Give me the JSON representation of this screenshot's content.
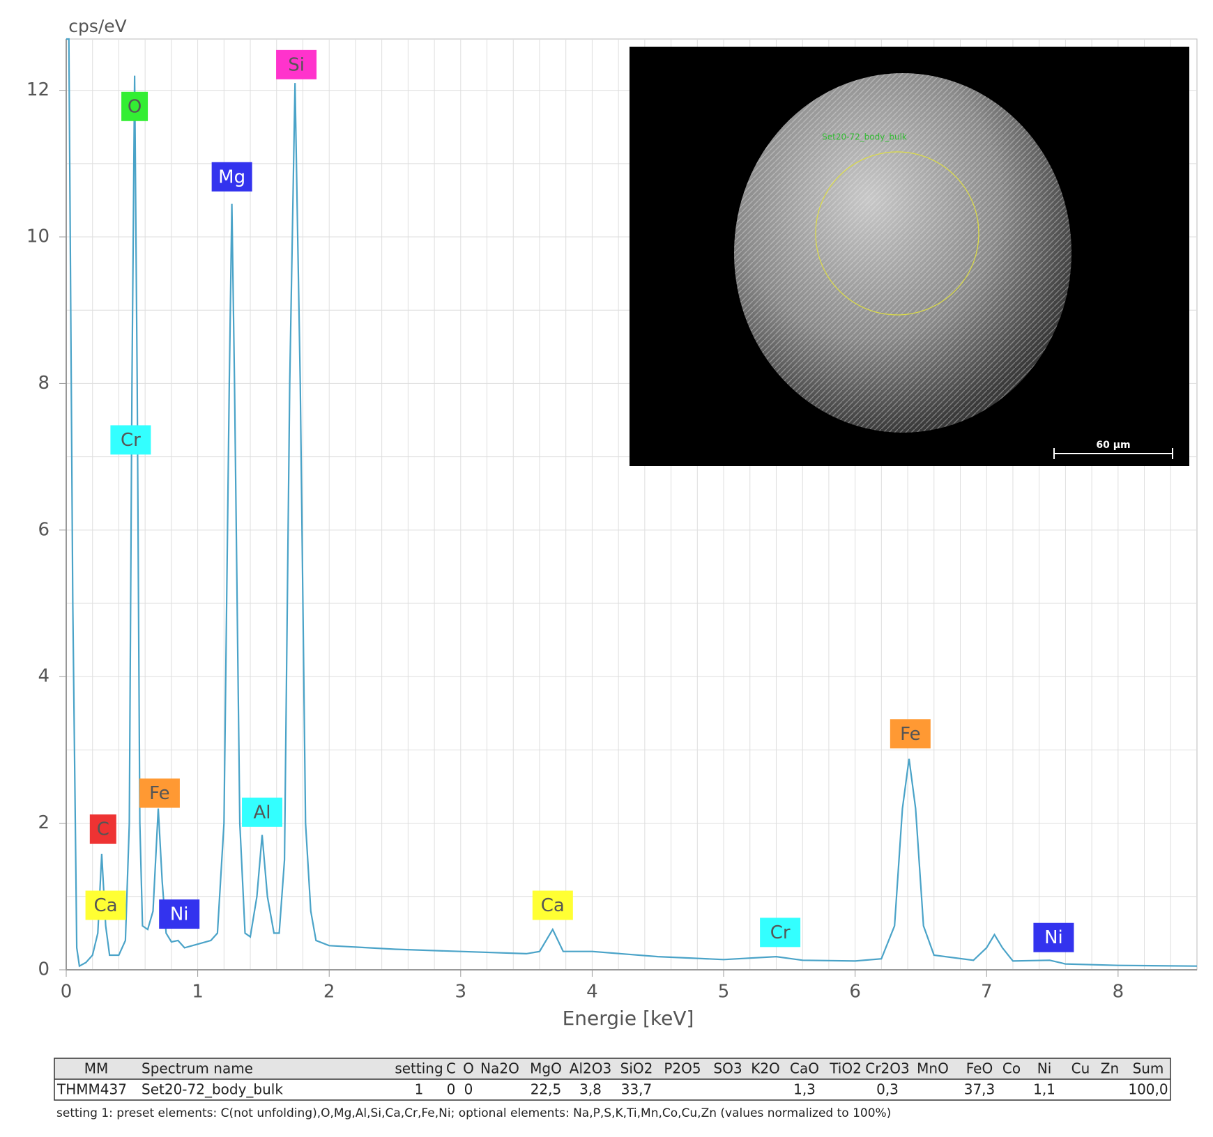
{
  "chart_data": {
    "type": "line",
    "y_label": "cps/eV",
    "x_label": "Energie [keV]",
    "xlim": [
      0,
      8.6
    ],
    "ylim": [
      0,
      12.7
    ],
    "xticks": [
      0,
      1,
      2,
      3,
      4,
      5,
      6,
      7,
      8
    ],
    "yticks": [
      0,
      2,
      4,
      6,
      8,
      10,
      12
    ],
    "xgrid": [
      0.2,
      0.4,
      0.6,
      0.8,
      1,
      1.2,
      1.4,
      1.6,
      1.8,
      2,
      2.2,
      2.4,
      2.6,
      2.8,
      3,
      3.2,
      3.4,
      3.6,
      3.8,
      4,
      4.2,
      4.4,
      4.6,
      4.8,
      5,
      5.2,
      5.4,
      5.6,
      5.8,
      6,
      6.2,
      6.4,
      6.6,
      6.8,
      7,
      7.2,
      7.4,
      7.6,
      7.8,
      8,
      8.2,
      8.4
    ],
    "ygrid": [
      1,
      2,
      3,
      4,
      5,
      6,
      7,
      8,
      9,
      10,
      11,
      12
    ],
    "grid": true,
    "series": [
      {
        "color": "#4aa3c8",
        "x": [
          0,
          0.02,
          0.05,
          0.08,
          0.1,
          0.15,
          0.2,
          0.24,
          0.27,
          0.3,
          0.33,
          0.4,
          0.45,
          0.48,
          0.5,
          0.52,
          0.54,
          0.56,
          0.58,
          0.62,
          0.66,
          0.7,
          0.73,
          0.76,
          0.8,
          0.85,
          0.9,
          1.0,
          1.1,
          1.15,
          1.2,
          1.24,
          1.26,
          1.28,
          1.32,
          1.36,
          1.4,
          1.45,
          1.49,
          1.53,
          1.58,
          1.62,
          1.66,
          1.7,
          1.74,
          1.78,
          1.82,
          1.86,
          1.9,
          2.0,
          2.5,
          3.0,
          3.5,
          3.6,
          3.7,
          3.78,
          4.0,
          4.5,
          5.0,
          5.4,
          5.6,
          6.0,
          6.2,
          6.3,
          6.36,
          6.41,
          6.46,
          6.52,
          6.6,
          6.9,
          7.0,
          7.06,
          7.12,
          7.2,
          7.48,
          7.6,
          8.0,
          8.6
        ],
        "y": [
          12.7,
          12.7,
          5,
          0.3,
          0.05,
          0.1,
          0.2,
          0.5,
          1.58,
          0.6,
          0.2,
          0.2,
          0.4,
          2,
          8,
          12.2,
          8,
          2,
          0.6,
          0.55,
          0.8,
          2.2,
          1.2,
          0.5,
          0.38,
          0.4,
          0.3,
          0.35,
          0.4,
          0.5,
          2,
          8,
          10.45,
          8,
          2,
          0.5,
          0.45,
          1.0,
          1.84,
          1.0,
          0.5,
          0.5,
          1.5,
          8,
          12.1,
          8,
          2,
          0.8,
          0.4,
          0.33,
          0.28,
          0.25,
          0.22,
          0.25,
          0.55,
          0.25,
          0.25,
          0.18,
          0.14,
          0.18,
          0.13,
          0.12,
          0.15,
          0.6,
          2.2,
          2.88,
          2.2,
          0.6,
          0.2,
          0.13,
          0.3,
          0.48,
          0.3,
          0.12,
          0.13,
          0.08,
          0.06,
          0.05
        ]
      }
    ],
    "annotations": [
      {
        "text": "Si",
        "x": 1.75,
        "y": 12.35,
        "color": "#ff33cc"
      },
      {
        "text": "O",
        "x": 0.52,
        "y": 11.78,
        "color": "#33ee33"
      },
      {
        "text": "Mg",
        "x": 1.26,
        "y": 10.82,
        "color": "#3333ee"
      },
      {
        "text": "Cr",
        "x": 0.49,
        "y": 7.23,
        "color": "#33ffff"
      },
      {
        "text": "Fe",
        "x": 0.71,
        "y": 2.41,
        "color": "#ff9933"
      },
      {
        "text": "Al",
        "x": 1.49,
        "y": 2.15,
        "color": "#33ffff"
      },
      {
        "text": "C",
        "x": 0.28,
        "y": 1.92,
        "color": "#ee3333"
      },
      {
        "text": "Ca",
        "x": 0.3,
        "y": 0.88,
        "color": "#ffff33"
      },
      {
        "text": "Ni",
        "x": 0.86,
        "y": 0.76,
        "color": "#3333ee"
      },
      {
        "text": "Ca",
        "x": 3.7,
        "y": 0.88,
        "color": "#ffff33"
      },
      {
        "text": "Cr",
        "x": 5.43,
        "y": 0.51,
        "color": "#33ffff"
      },
      {
        "text": "Fe",
        "x": 6.42,
        "y": 3.22,
        "color": "#ff9933"
      },
      {
        "text": "Ni",
        "x": 7.51,
        "y": 0.44,
        "color": "#3333ee"
      }
    ],
    "inset": {
      "label": "Set20-72_body_bulk",
      "scale": "60 µm"
    }
  },
  "table": {
    "columns": [
      "MM",
      "Spectrum name",
      "setting",
      "C",
      "O",
      "Na2O",
      "MgO",
      "Al2O3",
      "SiO2",
      "P2O5",
      "SO3",
      "K2O",
      "CaO",
      "TiO2",
      "Cr2O3",
      "MnO",
      "FeO",
      "Co",
      "Ni",
      "Cu",
      "Zn",
      "Sum"
    ],
    "rows": [
      [
        "THMM437",
        "Set20-72_body_bulk",
        "1",
        "0",
        "0",
        null,
        "22,5",
        "3,8",
        "33,7",
        null,
        null,
        null,
        "1,3",
        null,
        "0,3",
        null,
        "37,3",
        null,
        "1,1",
        null,
        null,
        "100,0"
      ]
    ],
    "note": "setting 1: preset elements: C(not unfolding),O,Mg,Al,Si,Ca,Cr,Fe,Ni; optional elements: Na,P,S,K,Ti,Mn,Co,Cu,Zn (values normalized to 100%)"
  }
}
